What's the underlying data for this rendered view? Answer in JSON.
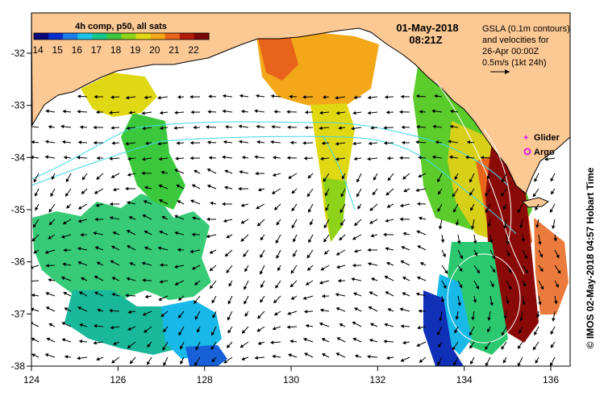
{
  "title": {
    "date": "01-May-2018",
    "time": "08:21Z"
  },
  "colorbar": {
    "caption": "4h comp, p50, all sats",
    "labels": [
      "14",
      "15",
      "16",
      "17",
      "18",
      "19",
      "20",
      "21",
      "22"
    ],
    "colors": [
      "#08087a",
      "#0a2fd0",
      "#1a7ee8",
      "#19c4e8",
      "#14c88c",
      "#3cc83c",
      "#8ed21a",
      "#e0d812",
      "#f2a818",
      "#e8641a",
      "#b41a0a",
      "#7a0808"
    ]
  },
  "info": {
    "line1": "GSLA (0.1m contours)",
    "line2": "and velocities for",
    "line3": "26-Apr 00:00Z",
    "line4": "0.5m/s (1kt 24h)"
  },
  "legend": {
    "glider": "Glider",
    "argo": "Argo",
    "glider_color": "#e020e0",
    "argo_color": "#e020e0"
  },
  "credit": "© IMOS 02-May-2018 04:57 Hobart Time",
  "axes": {
    "x_ticks": [
      "124",
      "126",
      "128",
      "130",
      "132",
      "134",
      "136"
    ],
    "y_ticks": [
      "-32",
      "-33",
      "-34",
      "-35",
      "-36",
      "-37",
      "-38"
    ]
  },
  "colors": {
    "land": "#fcc894",
    "ocean": "#ffffff",
    "contour_cyan": "#40d8e8",
    "contour_white": "#ffffff",
    "arrow": "#000000"
  }
}
